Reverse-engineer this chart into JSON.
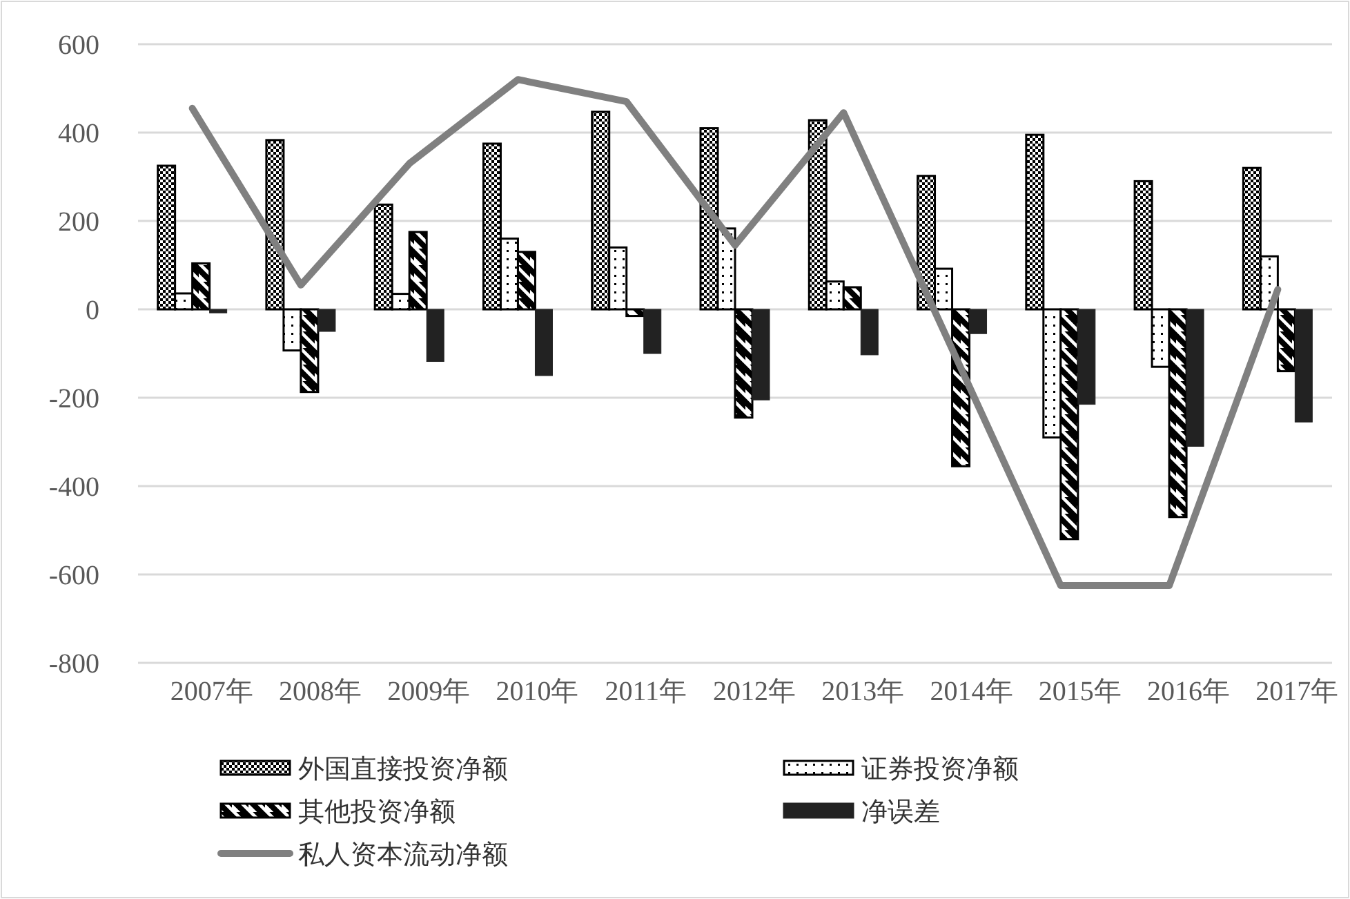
{
  "chart_data": {
    "type": "bar",
    "categories": [
      "2007年",
      "2008年",
      "2009年",
      "2010年",
      "2011年",
      "2012年",
      "2013年",
      "2014年",
      "2015年",
      "2016年",
      "2017年"
    ],
    "series": [
      {
        "name": "外国直接投资净额",
        "color": "#000000",
        "values": [
          325,
          383,
          237,
          375,
          447,
          410,
          428,
          302,
          395,
          290,
          320
        ]
      },
      {
        "name": "证券投资净额",
        "color": "#000000",
        "values": [
          36,
          -93,
          35,
          160,
          140,
          183,
          63,
          92,
          -290,
          -130,
          120
        ]
      },
      {
        "name": "其他投资净额",
        "color": "#000000",
        "values": [
          104,
          -187,
          175,
          130,
          -15,
          -245,
          50,
          -355,
          -520,
          -470,
          -140
        ]
      },
      {
        "name": "净误差",
        "color": "#222222",
        "values": [
          -8,
          -50,
          -118,
          -150,
          -100,
          -205,
          -103,
          -55,
          -215,
          -310,
          -255
        ]
      },
      {
        "name": "私人资本流动净额",
        "type": "line",
        "color": "#808080",
        "values": [
          455,
          55,
          330,
          520,
          470,
          145,
          445,
          -90,
          -625,
          -625,
          45
        ]
      }
    ],
    "ylim": [
      -800,
      600
    ],
    "yticks": [
      -800,
      -600,
      -400,
      -200,
      0,
      200,
      400,
      600
    ],
    "grid": "y",
    "legend": "bottom"
  }
}
